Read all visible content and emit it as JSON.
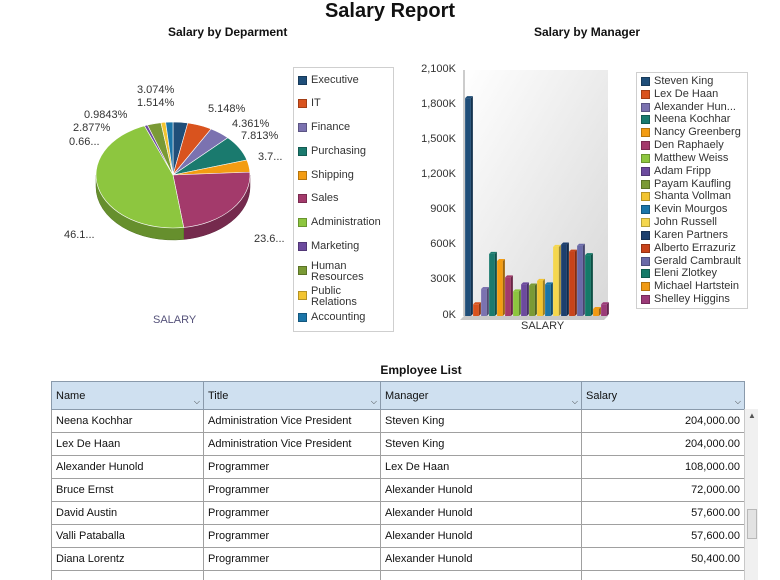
{
  "report": {
    "title": "Salary Report"
  },
  "pie_chart": {
    "title": "Salary by Deparment",
    "axis_label": "SALARY",
    "slice_labels": [
      "5.148%",
      "4.361%",
      "7.813%",
      "3.7...",
      "23.6...",
      "46.1...",
      "0.66...",
      "2.877%",
      "0.9843%",
      "1.514%",
      "3.074%"
    ]
  },
  "dept_legend": [
    "Executive",
    "IT",
    "Finance",
    "Purchasing",
    "Shipping",
    "Sales",
    "Administration",
    "Marketing",
    "Human Resources",
    "Public Relations",
    "Accounting"
  ],
  "bar_chart": {
    "title": "Salary by Manager",
    "axis_label": "SALARY",
    "ticks": [
      "2,100K",
      "1,800K",
      "1,500K",
      "1,200K",
      "900K",
      "600K",
      "300K",
      "0K"
    ]
  },
  "manager_legend": [
    "Steven King",
    "Lex De Haan",
    "Alexander Hun...",
    "Neena Kochhar",
    "Nancy Greenberg",
    "Den Raphaely",
    "Matthew Weiss",
    "Adam Fripp",
    "Payam Kaufling",
    "Shanta Vollman",
    "Kevin Mourgos",
    "John Russell",
    "Karen Partners",
    "Alberto Errazuriz",
    "Gerald Cambrault",
    "Eleni Zlotkey",
    "Michael Hartstein",
    "Shelley Higgins"
  ],
  "employee_list": {
    "title": "Employee List",
    "columns": [
      "Name",
      "Title",
      "Manager",
      "Salary"
    ],
    "rows": [
      [
        "Neena Kochhar",
        "Administration Vice President",
        "Steven King",
        "204,000.00"
      ],
      [
        "Lex De Haan",
        "Administration Vice President",
        "Steven King",
        "204,000.00"
      ],
      [
        "Alexander Hunold",
        "Programmer",
        "Lex De Haan",
        "108,000.00"
      ],
      [
        "Bruce Ernst",
        "Programmer",
        "Alexander Hunold",
        "72,000.00"
      ],
      [
        "David Austin",
        "Programmer",
        "Alexander Hunold",
        "57,600.00"
      ],
      [
        "Valli Pataballa",
        "Programmer",
        "Alexander Hunold",
        "57,600.00"
      ],
      [
        "Diana Lorentz",
        "Programmer",
        "Alexander Hunold",
        "50,400.00"
      ]
    ]
  },
  "chart_data": [
    {
      "type": "pie",
      "title": "Salary by Deparment",
      "xlabel": "SALARY",
      "categories": [
        "Executive",
        "IT",
        "Finance",
        "Purchasing",
        "Shipping",
        "Sales",
        "Administration",
        "Marketing",
        "Human Resources",
        "Public Relations",
        "Accounting"
      ],
      "values": [
        3.074,
        5.148,
        4.361,
        7.813,
        3.7,
        23.6,
        46.1,
        0.66,
        2.877,
        0.9843,
        1.514
      ],
      "colors": [
        "#1f4e79",
        "#d9531e",
        "#7b72b0",
        "#1a7a6e",
        "#f39c12",
        "#a33a6b",
        "#8dc63f",
        "#6c4a9e",
        "#7a9a35",
        "#f2c430",
        "#1b75a8"
      ]
    },
    {
      "type": "bar",
      "title": "Salary by Manager",
      "xlabel": "SALARY",
      "ylim": [
        0,
        2100
      ],
      "categories": [
        "Steven King",
        "Lex De Haan",
        "Alexander Hun...",
        "Neena Kochhar",
        "Nancy Greenberg",
        "Den Raphaely",
        "Matthew Weiss",
        "Adam Fripp",
        "Payam Kaufling",
        "Shanta Vollman",
        "Kevin Mourgos",
        "John Russell",
        "Karen Partners",
        "Alberto Errazuriz",
        "Gerald Cambrault",
        "Eleni Zlotkey",
        "Michael Hartstein",
        "Shelley Higgins"
      ],
      "values": [
        1860,
        100,
        230,
        530,
        470,
        330,
        210,
        270,
        260,
        300,
        270,
        590,
        610,
        550,
        600,
        520,
        60,
        100
      ],
      "colors": [
        "#1f4e79",
        "#d9531e",
        "#7b72b0",
        "#1a7a6e",
        "#f39c12",
        "#a33a6b",
        "#8dc63f",
        "#6c4a9e",
        "#7a9a35",
        "#f2c430",
        "#1b75a8",
        "#f5d74e",
        "#1c3f6e",
        "#c8431a",
        "#6a6aa8",
        "#147a68",
        "#f09a14",
        "#9b3a78"
      ]
    }
  ]
}
